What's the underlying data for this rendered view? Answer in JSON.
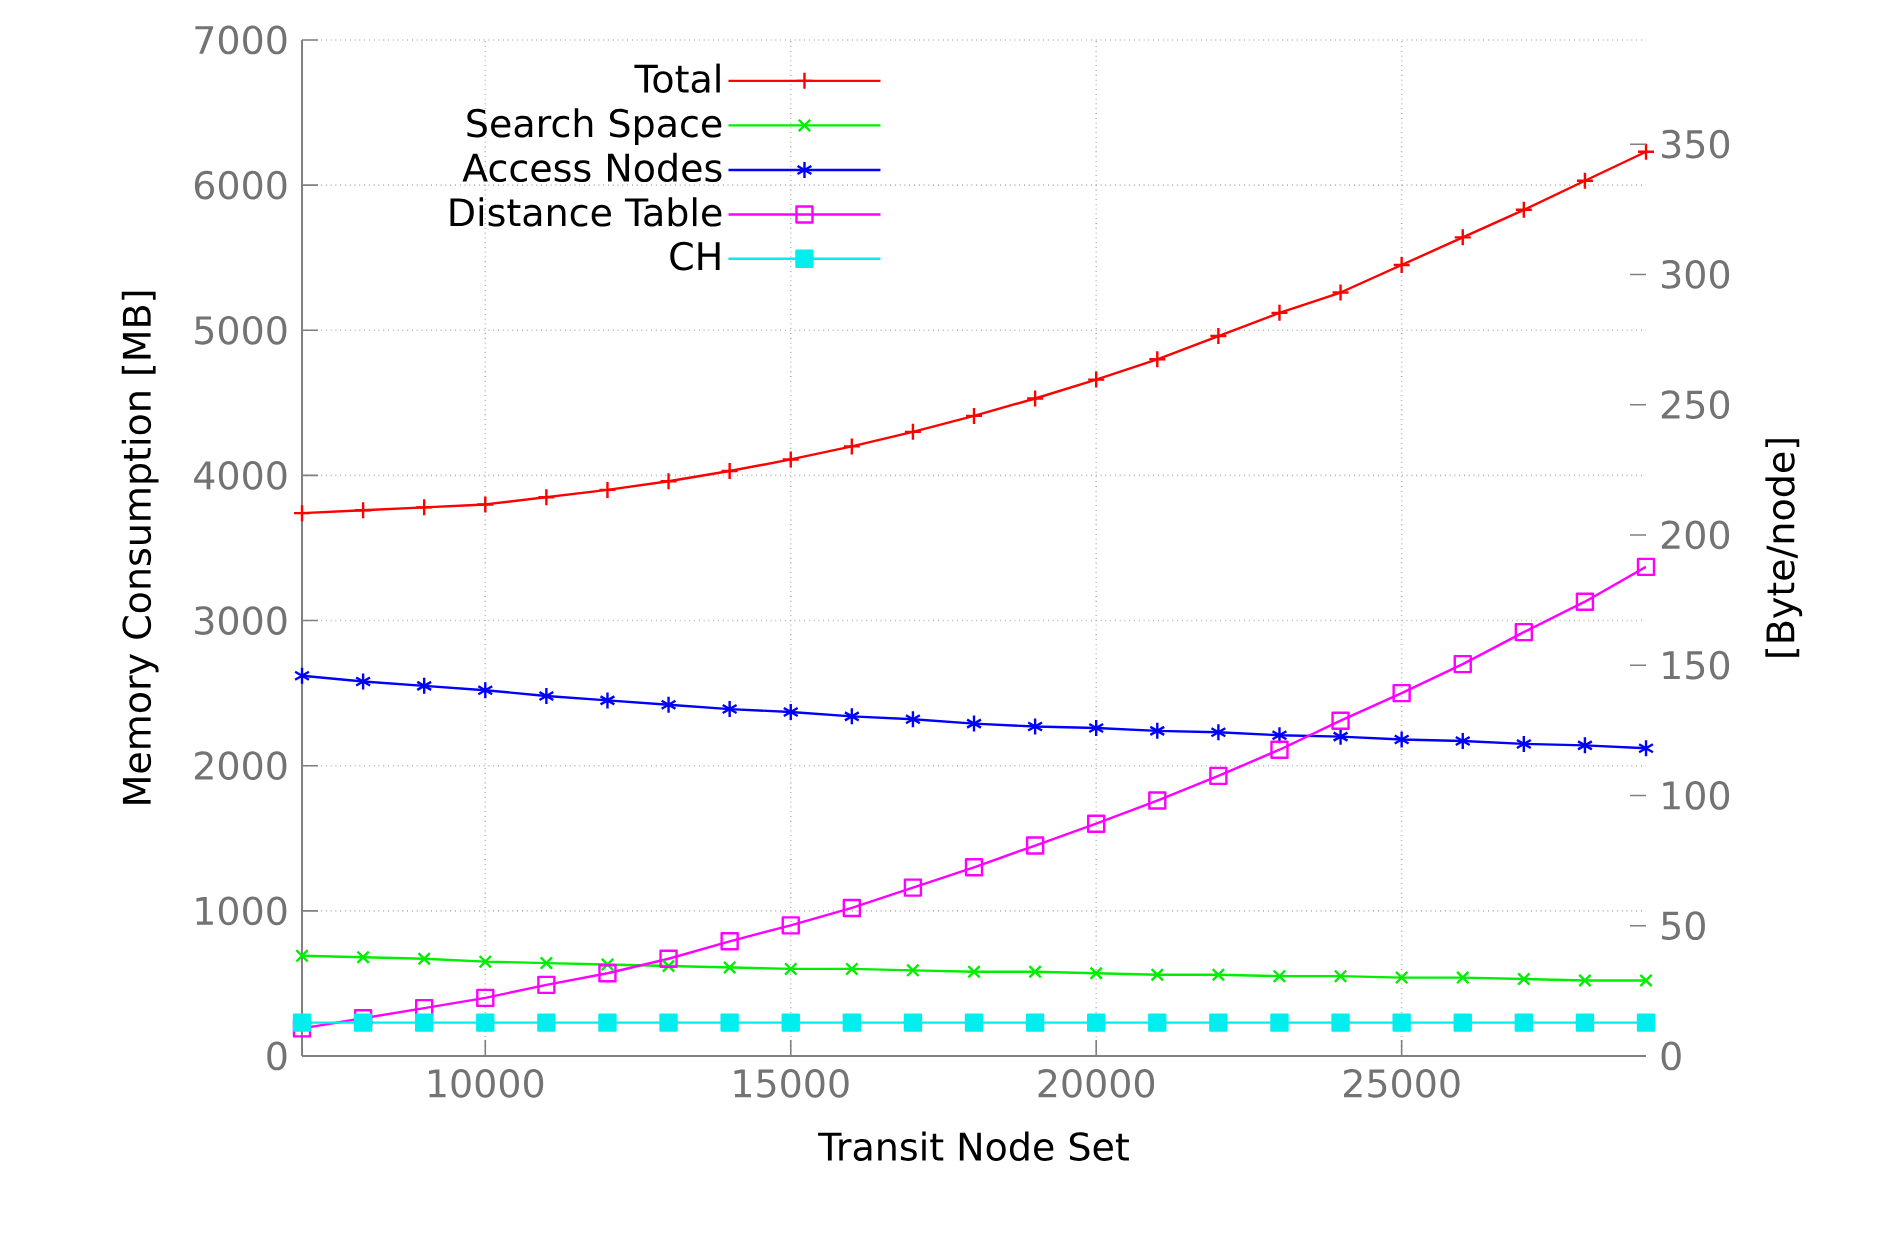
{
  "chart_data": {
    "type": "line",
    "xlabel": "Transit Node Set",
    "ylabel": "Memory Consumption [MB]",
    "y2label": "[Byte/node]",
    "x": [
      7000,
      8000,
      9000,
      10000,
      11000,
      12000,
      13000,
      14000,
      15000,
      16000,
      17000,
      18000,
      19000,
      20000,
      21000,
      22000,
      23000,
      24000,
      25000,
      26000,
      27000,
      28000,
      29000
    ],
    "xlim": [
      7000,
      29000
    ],
    "xticks": [
      10000,
      15000,
      20000,
      25000
    ],
    "ylim": [
      0,
      7000
    ],
    "yticks": [
      0,
      1000,
      2000,
      3000,
      4000,
      5000,
      6000,
      7000
    ],
    "y2lim": [
      0,
      390
    ],
    "y2ticks": [
      0,
      50,
      100,
      150,
      200,
      250,
      300,
      350
    ],
    "grid": true,
    "legend": "top left",
    "line_style": "solid",
    "series": [
      {
        "name": "Total",
        "color": "#ff0000",
        "marker": "plus",
        "values": [
          3740,
          3760,
          3780,
          3800,
          3850,
          3900,
          3960,
          4030,
          4110,
          4200,
          4300,
          4410,
          4530,
          4660,
          4800,
          4960,
          5120,
          5260,
          5450,
          5640,
          5830,
          6030,
          6230
        ]
      },
      {
        "name": "Search Space",
        "color": "#00ee00",
        "marker": "x",
        "values": [
          690,
          680,
          670,
          650,
          640,
          630,
          620,
          610,
          600,
          600,
          590,
          580,
          580,
          570,
          560,
          560,
          550,
          550,
          540,
          540,
          530,
          520,
          520
        ]
      },
      {
        "name": "Access Nodes",
        "color": "#0000ff",
        "marker": "cross",
        "values": [
          2620,
          2580,
          2550,
          2520,
          2480,
          2450,
          2420,
          2390,
          2370,
          2340,
          2320,
          2290,
          2270,
          2260,
          2240,
          2230,
          2210,
          2200,
          2180,
          2170,
          2150,
          2140,
          2120
        ]
      },
      {
        "name": "Distance Table",
        "color": "#ff00ff",
        "marker": "square",
        "values": [
          190,
          260,
          330,
          400,
          490,
          570,
          670,
          790,
          900,
          1020,
          1160,
          1300,
          1450,
          1600,
          1760,
          1930,
          2110,
          2310,
          2500,
          2700,
          2920,
          3130,
          3370
        ]
      },
      {
        "name": "CH",
        "color": "#00eeee",
        "marker": "square-filled",
        "values": [
          230,
          230,
          230,
          230,
          230,
          230,
          230,
          230,
          230,
          230,
          230,
          230,
          230,
          230,
          230,
          230,
          230,
          230,
          230,
          230,
          230,
          230,
          230
        ]
      }
    ]
  }
}
